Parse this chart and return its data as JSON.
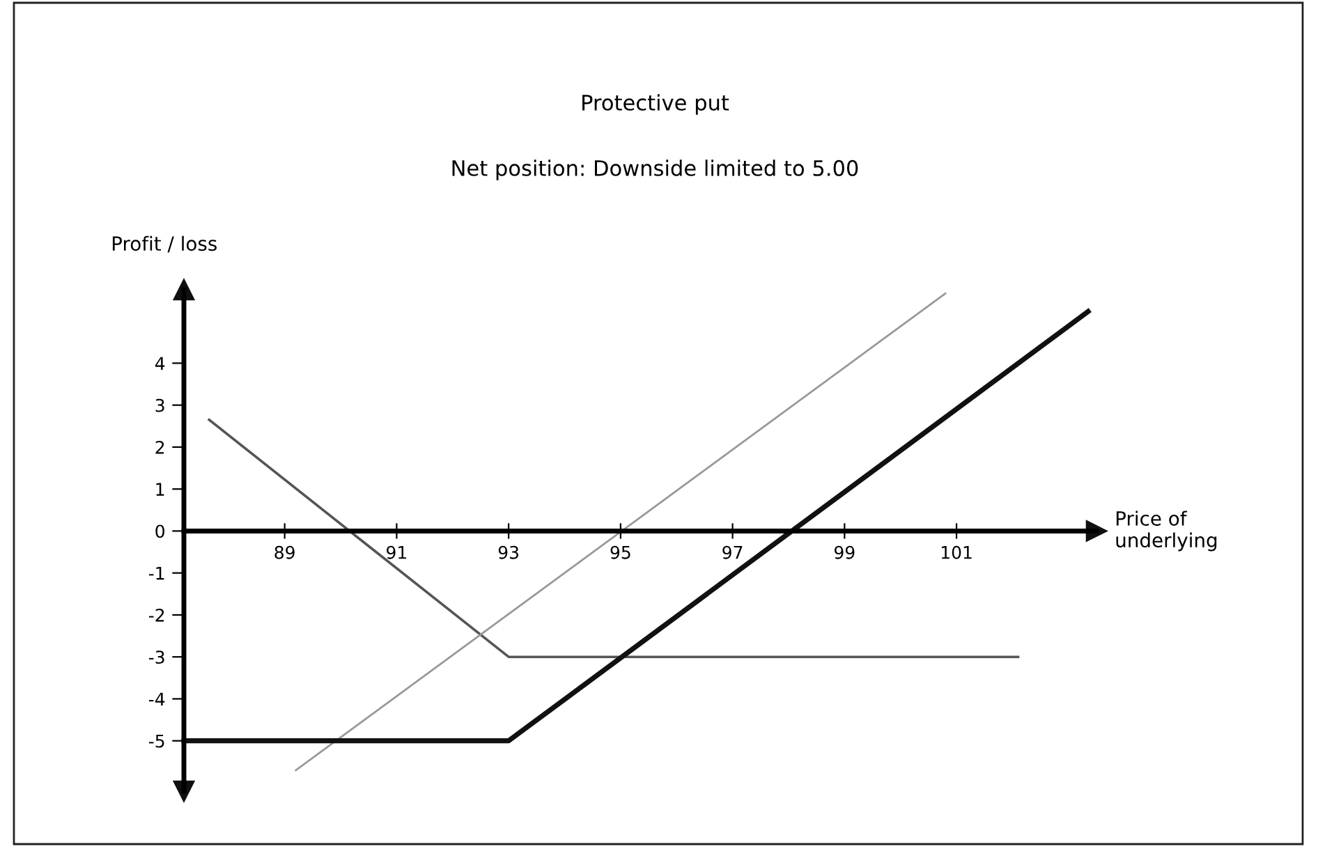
{
  "chart_data": {
    "type": "line",
    "title": "Protective put",
    "subtitle": "Net position: Downside limited to 5.00",
    "xlabel": "Price of\nunderlying",
    "ylabel": "Profit / loss",
    "series": [
      {
        "color": "#555555",
        "x": [
          87.65,
          93,
          102.1
        ],
        "values": [
          2.65,
          -3,
          -3
        ]
      },
      {
        "color": "#999999",
        "x": [
          89.2,
          100.8
        ],
        "values": [
          -5.7,
          5.66
        ]
      },
      {
        "color": "#111111",
        "x": [
          87.2,
          93,
          103.35
        ],
        "values": [
          -5,
          -5,
          5.23
        ]
      }
    ],
    "xlim": [
      87.2,
      103.5
    ],
    "ylim": [
      -6.2,
      5.75
    ],
    "xticks": [
      89,
      91,
      93,
      95,
      97,
      99,
      101
    ],
    "yticks": [
      -5,
      -4,
      -3,
      -2,
      -1,
      0,
      1,
      2,
      3,
      4
    ],
    "grid": false,
    "legend": false,
    "marker": "none",
    "line_style": "solid"
  }
}
